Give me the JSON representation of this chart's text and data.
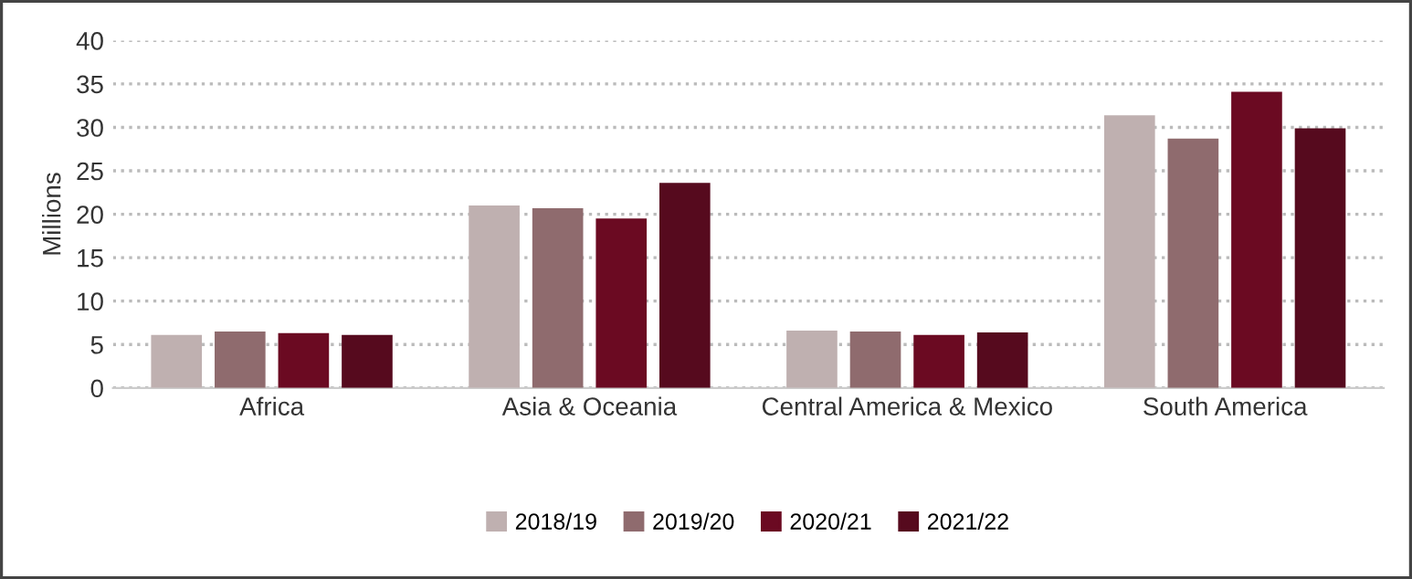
{
  "chart_data": {
    "type": "bar",
    "ylabel": "Millions",
    "categories": [
      "Africa",
      "Asia & Oceania",
      "Central America & Mexico",
      "South America"
    ],
    "series": [
      {
        "name": "2018/19",
        "color": "#bfb0b0",
        "values": [
          6.1,
          21.0,
          6.6,
          31.4
        ]
      },
      {
        "name": "2019/20",
        "color": "#8f6b6e",
        "values": [
          6.5,
          20.7,
          6.5,
          28.7
        ]
      },
      {
        "name": "2020/21",
        "color": "#6b0a22",
        "values": [
          6.3,
          19.5,
          6.1,
          34.1
        ]
      },
      {
        "name": "2021/22",
        "color": "#560a1e",
        "values": [
          6.1,
          23.6,
          6.4,
          29.9
        ]
      }
    ],
    "ylim": [
      0,
      40
    ],
    "yticks": [
      0,
      5,
      10,
      15,
      20,
      25,
      30,
      35,
      40
    ],
    "grid": "y",
    "legend": "bottom"
  }
}
